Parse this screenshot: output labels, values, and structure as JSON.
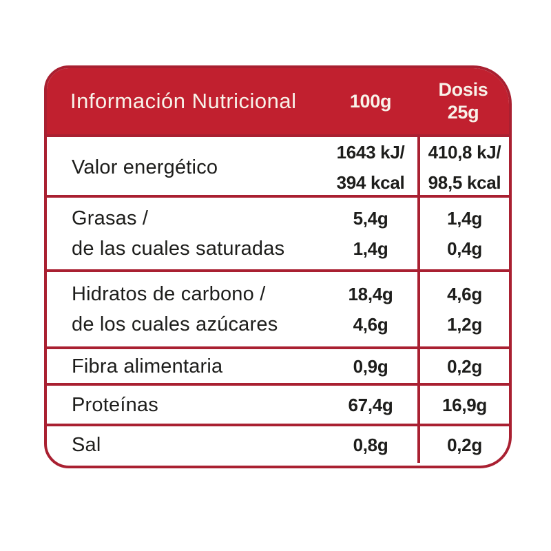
{
  "table": {
    "colors": {
      "header_bg": "#c1202f",
      "border": "#a92031",
      "header_text": "#f8f2e9",
      "body_text": "#1d1d1b"
    },
    "header": {
      "title": "Información Nutricional",
      "col_100g": "100g",
      "col_dosis": [
        "Dosis",
        "25g"
      ]
    },
    "rows": [
      {
        "label_lines": [
          "Valor energético"
        ],
        "per100_lines": [
          "1643 kJ/",
          "394 kcal"
        ],
        "dosis_lines": [
          "410,8 kJ/",
          "98,5 kcal"
        ]
      },
      {
        "label_lines": [
          "Grasas /",
          "de las cuales saturadas"
        ],
        "per100_lines": [
          "5,4g",
          "1,4g"
        ],
        "dosis_lines": [
          "1,4g",
          "0,4g"
        ]
      },
      {
        "label_lines": [
          "Hidratos de carbono /",
          "de los cuales azúcares"
        ],
        "per100_lines": [
          "18,4g",
          "4,6g"
        ],
        "dosis_lines": [
          "4,6g",
          "1,2g"
        ]
      },
      {
        "label_lines": [
          "Fibra alimentaria"
        ],
        "per100_lines": [
          "0,9g"
        ],
        "dosis_lines": [
          "0,2g"
        ]
      },
      {
        "label_lines": [
          "Proteínas"
        ],
        "per100_lines": [
          "67,4g"
        ],
        "dosis_lines": [
          "16,9g"
        ]
      },
      {
        "label_lines": [
          "Sal"
        ],
        "per100_lines": [
          "0,8g"
        ],
        "dosis_lines": [
          "0,2g"
        ]
      }
    ]
  }
}
